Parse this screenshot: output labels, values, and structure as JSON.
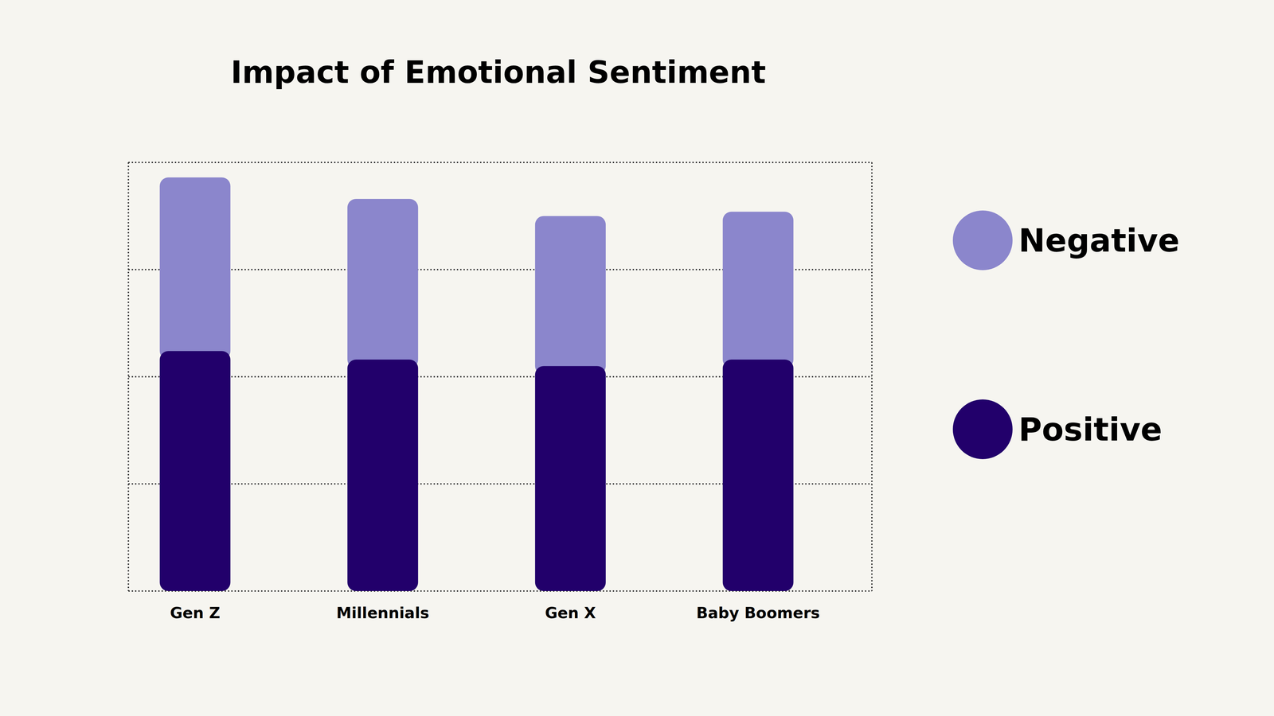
{
  "chart_data": {
    "type": "bar",
    "title": "Impact of Emotional Sentiment",
    "categories": [
      "Gen Z",
      "Millennials",
      "Gen X",
      "Baby Boomers"
    ],
    "series": [
      {
        "name": "Positive",
        "color": "#22006b",
        "values": [
          56,
          54,
          52.5,
          54
        ]
      },
      {
        "name": "Negative",
        "color": "#8b86cc",
        "values": [
          40.5,
          37.5,
          35,
          34.5
        ]
      }
    ],
    "stacked": true,
    "ylim": [
      0,
      100
    ],
    "yticks": [
      0,
      25,
      50,
      75,
      100
    ],
    "grid": true,
    "tick_labels": "x",
    "legend": "right"
  }
}
